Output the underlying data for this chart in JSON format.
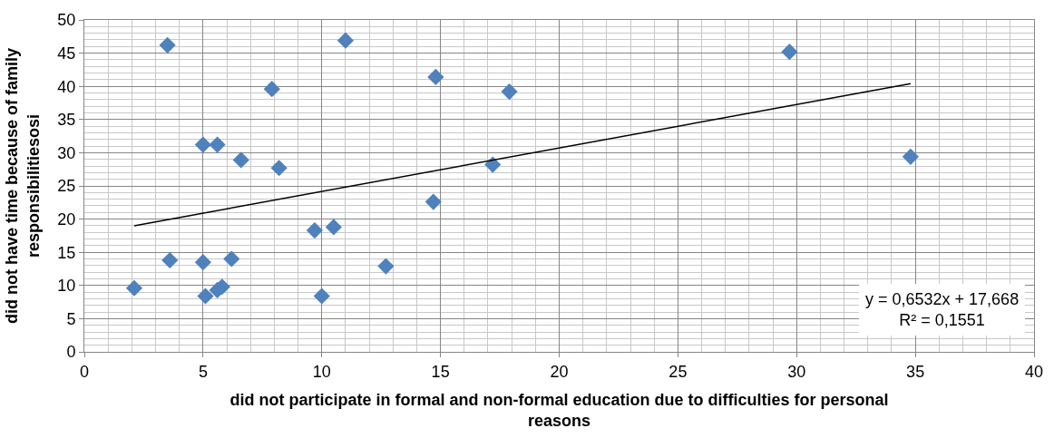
{
  "chart_data": {
    "type": "scatter",
    "xlabel": "did not participate in formal and non-formal education due to difficulties for personal reasons",
    "ylabel": "did not have time because of family responsibilitiesosi",
    "annotations": [
      "y = 0,6532x + 17,668",
      "R² = 0,1551"
    ],
    "xlim": [
      0,
      40
    ],
    "xticks": [
      0,
      5,
      10,
      15,
      20,
      25,
      30,
      35,
      40
    ],
    "ylim": [
      0,
      50
    ],
    "yticks": [
      0,
      5,
      10,
      15,
      20,
      25,
      30,
      35,
      40,
      45,
      50
    ],
    "grid": true,
    "series": [
      {
        "color": "#4f81bd",
        "marker": "diamond",
        "x": [
          3.5,
          11.0,
          29.7,
          14.8,
          7.9,
          17.9,
          5.0,
          5.6,
          6.6,
          8.2,
          17.2,
          34.8,
          14.7,
          9.7,
          10.5,
          3.6,
          5.0,
          6.2,
          12.7,
          2.1,
          5.6,
          5.8,
          5.1,
          10.0
        ],
        "values": [
          46.2,
          46.9,
          45.2,
          41.4,
          39.6,
          39.2,
          31.2,
          31.2,
          28.9,
          27.7,
          28.2,
          29.4,
          22.6,
          18.3,
          18.8,
          13.8,
          13.5,
          14.0,
          12.9,
          9.6,
          9.3,
          9.8,
          8.4,
          8.4
        ]
      },
      {
        "type": "line",
        "color": "#000000",
        "marker": "none",
        "x": [
          2.1,
          34.8
        ],
        "values": [
          19.0,
          40.4
        ]
      }
    ]
  }
}
